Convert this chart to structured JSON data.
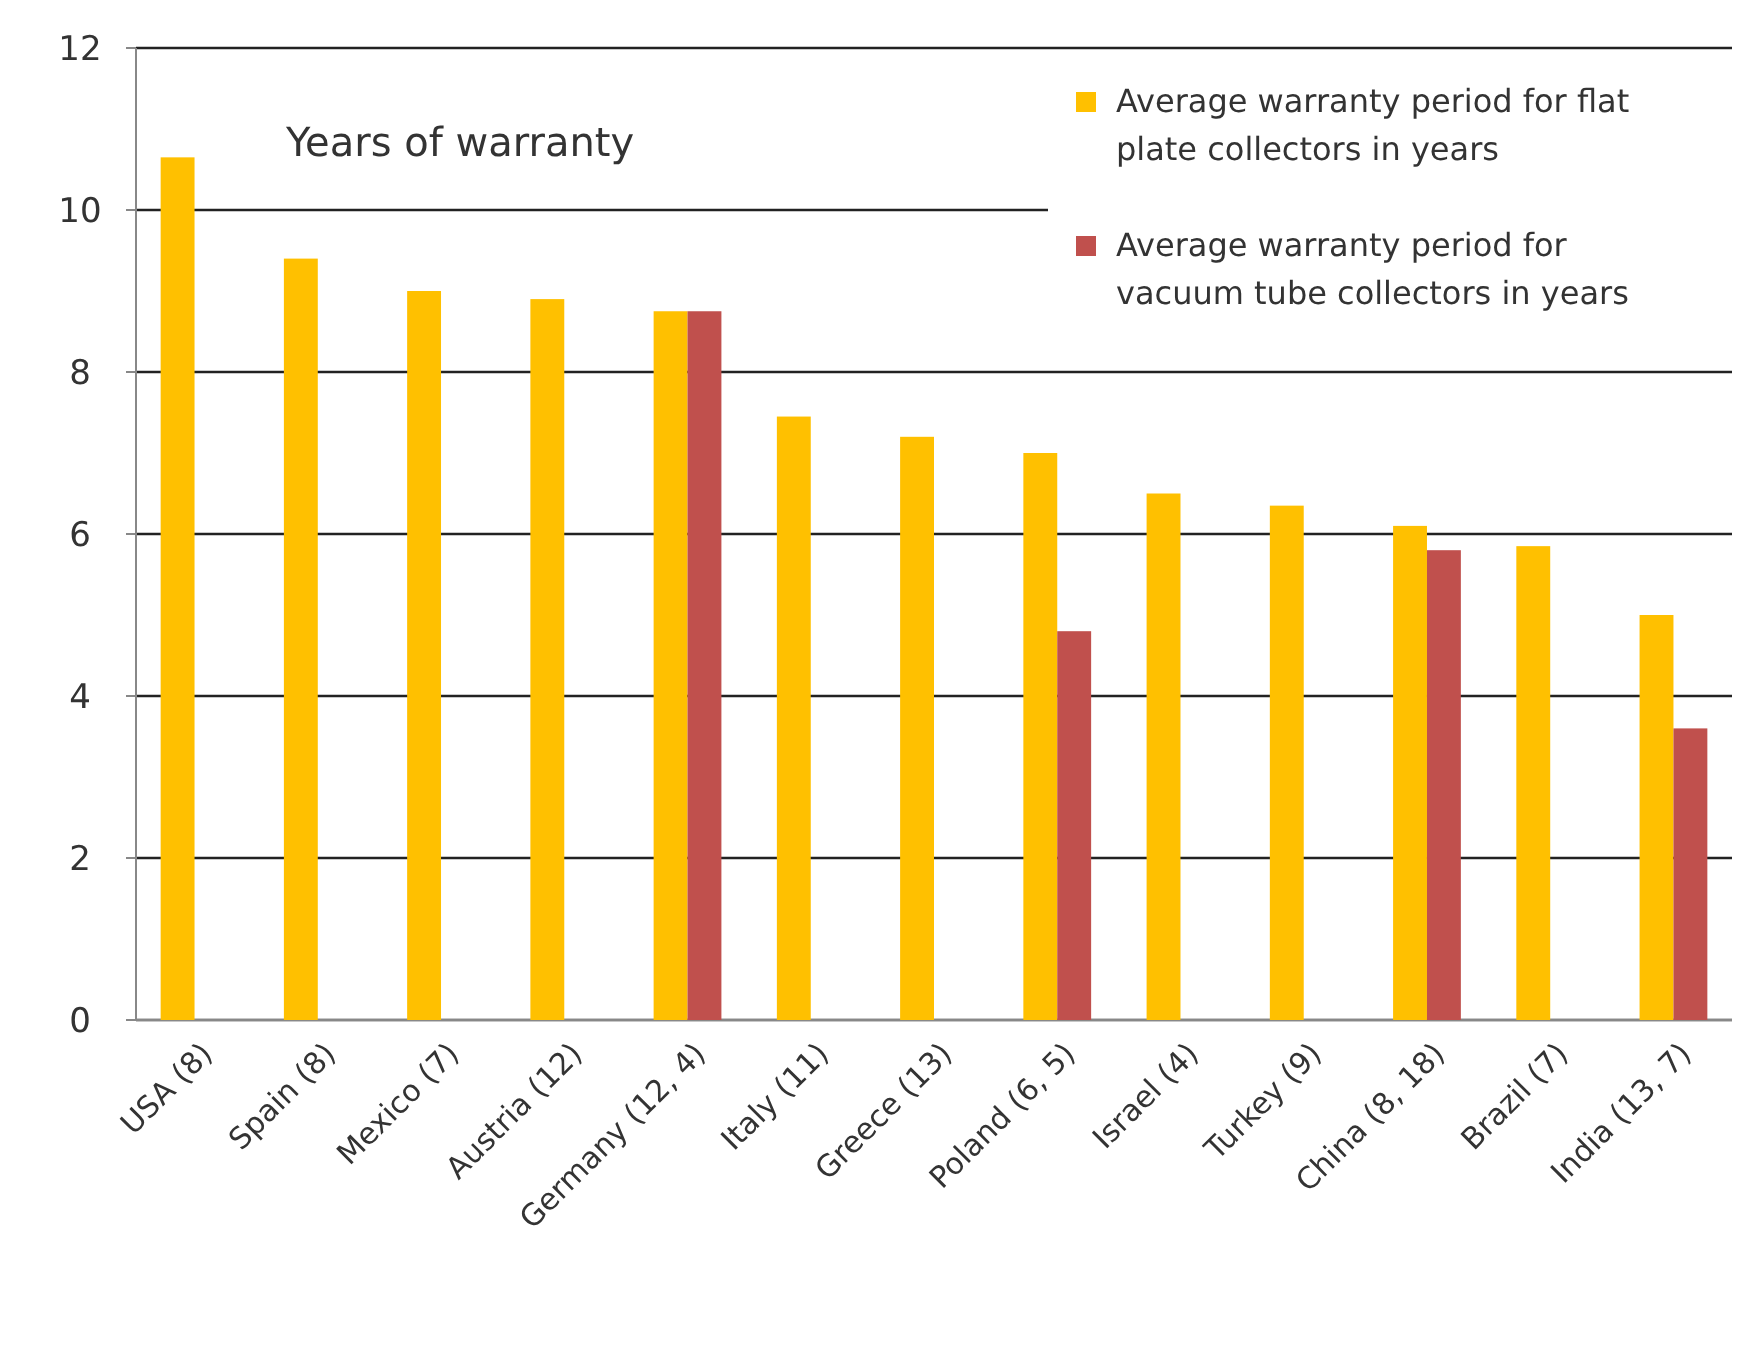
{
  "chart_data": {
    "type": "bar",
    "title": "Years of warranty",
    "categories": [
      "USA (8)",
      "Spain (8)",
      "Mexico (7)",
      "Austria  (12)",
      "Germany (12, 4)",
      "Italy (11)",
      "Greece (13)",
      "Poland (6, 5)",
      "Israel (4)",
      "Turkey (9)",
      "China (8, 18)",
      "Brazil (7)",
      "India (13, 7)"
    ],
    "series": [
      {
        "name": "Average warranty period for flat plate  collectors in years",
        "color": "#ffc000",
        "values": [
          10.65,
          9.4,
          9.0,
          8.9,
          8.75,
          7.45,
          7.2,
          7.0,
          6.5,
          6.35,
          6.1,
          5.85,
          5.0
        ]
      },
      {
        "name": "Average warranty period for vacuum tube collectors in years",
        "color": "#c0504d",
        "values": [
          null,
          null,
          null,
          null,
          8.75,
          null,
          null,
          4.8,
          null,
          null,
          5.8,
          null,
          3.6
        ]
      }
    ],
    "ylim": [
      0,
      12
    ],
    "yticks": [
      0,
      2,
      4,
      6,
      8,
      10,
      12
    ],
    "grid": "y",
    "legend": "top right"
  }
}
